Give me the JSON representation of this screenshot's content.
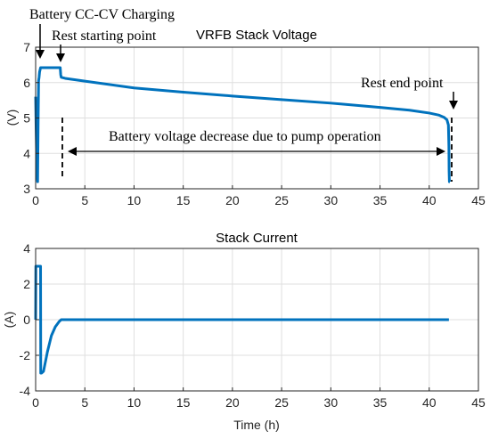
{
  "chart_data": [
    {
      "type": "line",
      "title": "VRFB Stack Voltage",
      "xlabel": "",
      "ylabel": "(V)",
      "xlim": [
        0,
        45
      ],
      "ylim": [
        3,
        7
      ],
      "xticks": [
        "0",
        "5",
        "10",
        "15",
        "20",
        "25",
        "30",
        "35",
        "40",
        "45"
      ],
      "yticks": [
        "3",
        "4",
        "5",
        "6",
        "7"
      ],
      "grid": true,
      "color": "#0072BD",
      "series": [
        {
          "x": [
            0,
            0.05,
            0.1,
            0.15,
            0.2,
            0.25,
            0.3,
            0.35,
            0.4,
            0.5,
            0.8,
            1.2,
            2.0,
            2.5,
            2.55,
            2.6,
            3,
            5,
            10,
            15,
            20,
            25,
            30,
            35,
            38,
            40,
            41,
            41.5,
            41.8,
            41.95,
            42.0,
            42.02,
            42.05,
            42.1
          ],
          "y": [
            5.6,
            4.7,
            4.0,
            3.4,
            3.2,
            4.8,
            6.05,
            6.15,
            6.3,
            6.42,
            6.42,
            6.42,
            6.42,
            6.42,
            6.22,
            6.15,
            6.12,
            6.04,
            5.85,
            5.73,
            5.62,
            5.52,
            5.42,
            5.3,
            5.22,
            5.14,
            5.08,
            5.02,
            4.95,
            4.8,
            4.2,
            3.5,
            3.2,
            3.2
          ]
        }
      ],
      "annotations": {
        "charging": "Battery CC-CV Charging",
        "rest_start": "Rest starting point",
        "rest_end": "Rest end point",
        "decrease": "Battery voltage decrease due to pump operation"
      }
    },
    {
      "type": "line",
      "title": "Stack Current",
      "xlabel": "Time (h)",
      "ylabel": "(A)",
      "xlim": [
        0,
        45
      ],
      "ylim": [
        -4,
        4
      ],
      "xticks": [
        "0",
        "5",
        "10",
        "15",
        "20",
        "25",
        "30",
        "35",
        "40",
        "45"
      ],
      "yticks": [
        "-4",
        "-2",
        "0",
        "2",
        "4"
      ],
      "grid": true,
      "color": "#0072BD",
      "series": [
        {
          "x": [
            0,
            0.02,
            0.5,
            0.52,
            0.6,
            0.8,
            1.2,
            1.6,
            2.0,
            2.4,
            2.6,
            5,
            10,
            20,
            30,
            40,
            42
          ],
          "y": [
            0,
            3.0,
            3.0,
            -3.0,
            -3.0,
            -2.9,
            -1.8,
            -0.9,
            -0.4,
            -0.1,
            0,
            0,
            0,
            0,
            0,
            0,
            0
          ]
        }
      ]
    }
  ]
}
